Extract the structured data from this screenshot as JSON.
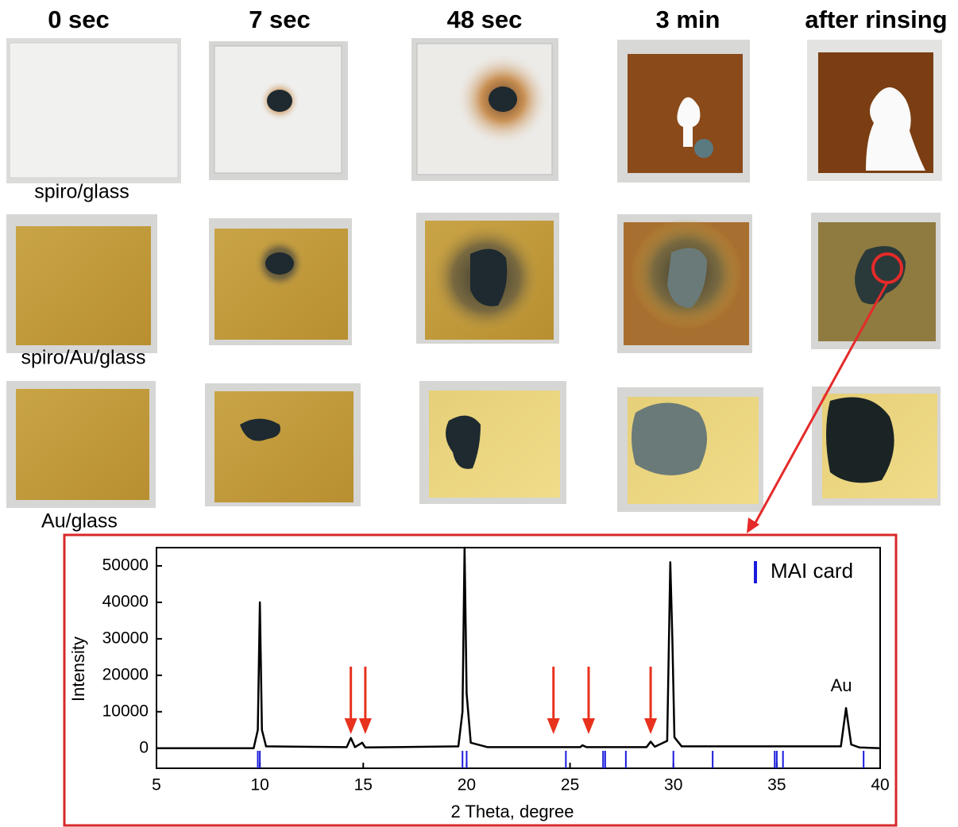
{
  "header": {
    "columns": [
      "0 sec",
      "7 sec",
      "48 sec",
      "3 min",
      "after rinsing"
    ]
  },
  "rows": [
    "spiro/glass",
    "spiro/Au/glass",
    "Au/glass"
  ],
  "chart_data": {
    "type": "line",
    "xlabel": "2 Theta, degree",
    "ylabel": "Intensity",
    "xlim": [
      5,
      40
    ],
    "xticks": [
      5,
      10,
      15,
      20,
      25,
      30,
      35,
      40
    ],
    "ylim": [
      -5500,
      55000
    ],
    "yticks": [
      0,
      10000,
      20000,
      30000,
      40000,
      50000
    ],
    "x": [
      5,
      9.7,
      9.9,
      10.0,
      10.1,
      10.3,
      14.2,
      14.4,
      14.6,
      14.95,
      15.1,
      19.6,
      19.8,
      19.9,
      20.0,
      20.2,
      21,
      25.5,
      25.6,
      25.8,
      28.7,
      28.9,
      29.1,
      29.7,
      29.85,
      29.95,
      30.05,
      30.4,
      38.1,
      38.35,
      38.6,
      39,
      40
    ],
    "series": [
      {
        "color": "#000000",
        "values": [
          0,
          0,
          5000,
          40000,
          5000,
          500,
          300,
          2800,
          300,
          1500,
          200,
          500,
          10000,
          55000,
          15000,
          1500,
          300,
          300,
          800,
          300,
          300,
          1800,
          400,
          2000,
          51000,
          30000,
          3000,
          500,
          500,
          11000,
          1000,
          200,
          0
        ]
      }
    ],
    "reference": {
      "name": "MAI card",
      "color": "#1a1adc",
      "x": [
        9.9,
        10.0,
        19.8,
        20.0,
        24.8,
        26.6,
        26.7,
        27.7,
        30.0,
        31.9,
        34.9,
        35.0,
        35.3,
        39.2
      ]
    },
    "arrows": {
      "color": "#e8321e",
      "x": [
        14.4,
        15.1,
        24.2,
        25.9,
        28.9
      ]
    },
    "annotation": {
      "text": "Au",
      "x": 38.35,
      "y": 11000
    },
    "legend": "upper right"
  }
}
